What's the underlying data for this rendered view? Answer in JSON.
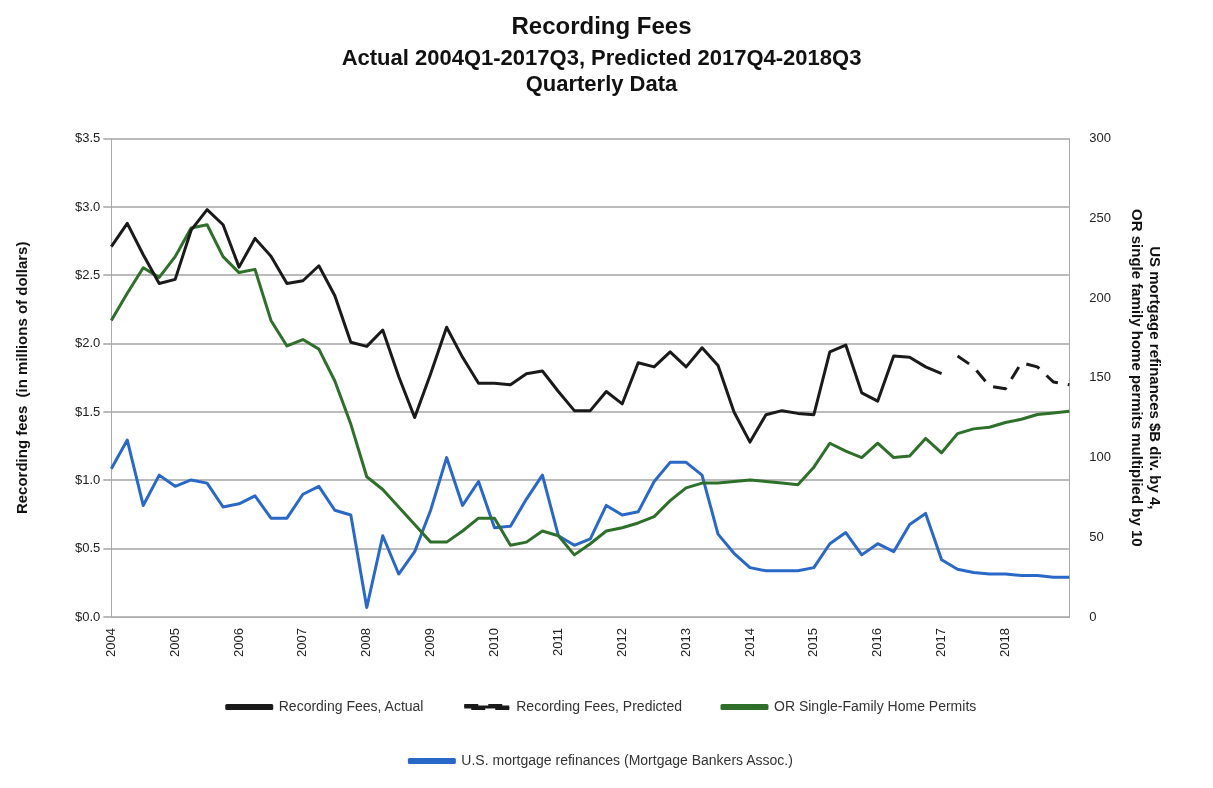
{
  "chart_data": {
    "type": "line",
    "title": "Recording Fees",
    "subtitle": "Actual 2004Q1-2017Q3, Predicted 2017Q4-2018Q3\nQuarterly Data",
    "ylabel": "Recording fees  (in millions of dollars)",
    "y2label": "US mortgage refinances $B div. by 4,\nOR single family home permits multiplied by 10",
    "categories": [
      "2004",
      null,
      null,
      null,
      "2005",
      null,
      null,
      null,
      "2006",
      null,
      null,
      null,
      "2007",
      null,
      null,
      null,
      "2008",
      null,
      null,
      null,
      "2009",
      null,
      null,
      null,
      "2010",
      null,
      null,
      null,
      "2011",
      null,
      null,
      null,
      "2012",
      null,
      null,
      null,
      "2013",
      null,
      null,
      null,
      "2014",
      null,
      null,
      null,
      "2015",
      null,
      null,
      null,
      "2016",
      null,
      null,
      null,
      "2017",
      null,
      null,
      null,
      "2018",
      null,
      null,
      null,
      null
    ],
    "ylim": [
      0,
      3.5
    ],
    "yticks": [
      {
        "value": 0,
        "label": "$0.0"
      },
      {
        "value": 0.5,
        "label": "$0.5"
      },
      {
        "value": 1,
        "label": "$1.0"
      },
      {
        "value": 1.5,
        "label": "$1.5"
      },
      {
        "value": 2,
        "label": "$2.0"
      },
      {
        "value": 2.5,
        "label": "$2.5"
      },
      {
        "value": 3,
        "label": "$3.0"
      },
      {
        "value": 3.5,
        "label": "$3.5"
      }
    ],
    "y2lim": [
      0,
      300
    ],
    "y2ticks": [
      0,
      50,
      100,
      150,
      200,
      250,
      300
    ],
    "grid": "y",
    "legend": "bottom",
    "marker": "none",
    "series": [
      {
        "name": "Recording Fees, Actual",
        "color": "#1a1a1a",
        "line_style": "solid",
        "values": [
          2.71,
          2.88,
          2.65,
          2.44,
          2.47,
          2.83,
          2.98,
          2.87,
          2.56,
          2.77,
          2.64,
          2.44,
          2.46,
          2.57,
          2.35,
          2.01,
          1.98,
          2.1,
          1.76,
          1.46,
          1.78,
          2.12,
          1.9,
          1.71,
          1.71,
          1.7,
          1.78,
          1.8,
          1.65,
          1.51,
          1.51,
          1.65,
          1.56,
          1.86,
          1.83,
          1.94,
          1.83,
          1.97,
          1.84,
          1.5,
          1.28,
          1.48,
          1.51,
          1.49,
          1.48,
          1.94,
          1.99,
          1.64,
          1.58,
          1.91,
          1.9,
          1.83,
          1.78,
          null,
          null,
          null,
          null,
          null,
          null,
          null,
          null
        ]
      },
      {
        "name": "Recording Fees, Predicted",
        "color": "#1a1a1a",
        "line_style": "dashed",
        "values": [
          null,
          null,
          null,
          null,
          null,
          null,
          null,
          null,
          null,
          null,
          null,
          null,
          null,
          null,
          null,
          null,
          null,
          null,
          null,
          null,
          null,
          null,
          null,
          null,
          null,
          null,
          null,
          null,
          null,
          null,
          null,
          null,
          null,
          null,
          null,
          null,
          null,
          null,
          null,
          null,
          null,
          null,
          null,
          null,
          null,
          null,
          null,
          null,
          null,
          null,
          null,
          null,
          null,
          1.91,
          1.83,
          1.69,
          1.67,
          1.86,
          1.83,
          1.72,
          1.7
        ]
      },
      {
        "name": "OR Single-Family Home Permits",
        "color": "#2e6f2a",
        "line_style": "solid",
        "axis": "y2",
        "values": [
          186,
          203,
          219,
          213,
          226,
          244,
          246,
          226,
          216,
          218,
          186,
          170,
          174,
          168,
          148,
          121,
          88,
          80,
          69,
          58,
          47,
          47,
          54,
          62,
          62,
          45,
          47,
          54,
          51,
          39,
          46,
          54,
          56,
          59,
          63,
          73,
          81,
          84,
          84,
          85,
          86,
          85,
          84,
          83,
          94,
          109,
          104,
          100,
          109,
          100,
          101,
          112,
          103,
          115,
          118,
          119,
          122,
          124,
          127,
          128,
          129
        ]
      },
      {
        "name": "U.S. mortgage refinances (Mortgage Bankers Assoc.)",
        "color": "#2a68c8",
        "line_style": "solid",
        "axis": "y2",
        "values": [
          93,
          111,
          70,
          89,
          82,
          86,
          84,
          69,
          71,
          76,
          62,
          62,
          77,
          82,
          67,
          64,
          6,
          51,
          27,
          41,
          67,
          100,
          70,
          85,
          56,
          57,
          74,
          89,
          51,
          45,
          49,
          70,
          64,
          66,
          85,
          97,
          97,
          89,
          52,
          40,
          31,
          29,
          29,
          29,
          31,
          46,
          53,
          39,
          46,
          41,
          58,
          65,
          36,
          30,
          28,
          27,
          27,
          26,
          26,
          25,
          25
        ]
      }
    ]
  }
}
